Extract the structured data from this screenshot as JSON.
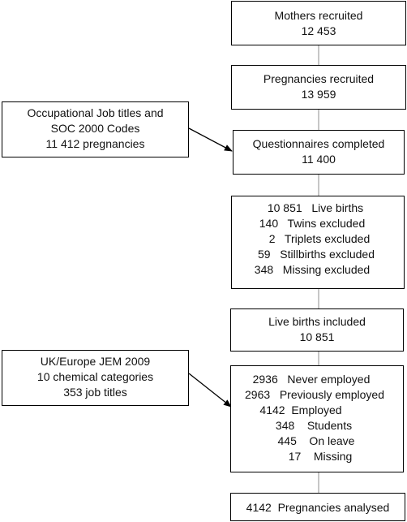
{
  "boxes": {
    "mothers": {
      "lines": [
        "Mothers recruited",
        "12 453"
      ]
    },
    "pregnancies": {
      "lines": [
        "Pregnancies recruited",
        "13 959"
      ]
    },
    "questionnaires": {
      "lines": [
        "Questionnaires completed",
        "11 400"
      ]
    },
    "births": {
      "lines": [
        "10 851   Live births",
        "140   Twins excluded",
        "2   Triplets excluded",
        "59   Stillbirths excluded",
        "348   Missing excluded"
      ]
    },
    "included": {
      "lines": [
        "Live births included",
        "10 851"
      ]
    },
    "employment": {
      "lines": [
        "2936   Never employed",
        "2963   Previously employed",
        "4142  Employed",
        "348    Students",
        "445    On leave",
        "17    Missing"
      ]
    },
    "analysed": {
      "lines": [
        "4142  Pregnancies analysed"
      ]
    },
    "occupational": {
      "lines": [
        "Occupational Job titles and",
        "SOC 2000 Codes",
        "11 412 pregnancies"
      ]
    },
    "jem": {
      "lines": [
        "UK/Europe JEM 2009",
        "10 chemical categories",
        "353 job titles"
      ]
    }
  }
}
